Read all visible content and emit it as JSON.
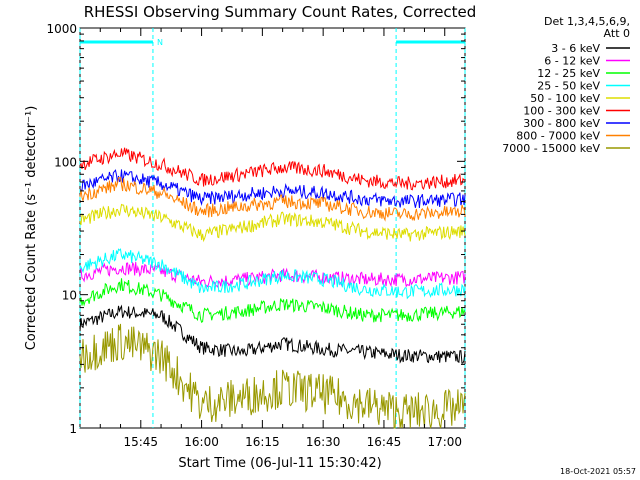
{
  "chart_data": {
    "type": "line",
    "title": "RHESSI Observing Summary Count Rates, Corrected",
    "xlabel": "Start Time (06-Jul-11 15:30:42)",
    "ylabel": "Corrected Count Rate (s⁻¹ detector⁻¹)",
    "y_scale": "log",
    "ylim": [
      1,
      1000
    ],
    "y_ticks": [
      "1",
      "10",
      "100",
      "1000"
    ],
    "x_range_minutes": [
      0,
      95
    ],
    "x_ticks": [
      {
        "minute": 15,
        "label": "15:45"
      },
      {
        "minute": 30,
        "label": "16:00"
      },
      {
        "minute": 45,
        "label": "16:15"
      },
      {
        "minute": 60,
        "label": "16:30"
      },
      {
        "minute": 75,
        "label": "16:45"
      },
      {
        "minute": 90,
        "label": "17:00"
      }
    ],
    "legend_header": [
      "Det 1,3,4,5,6,9,",
      "Att 0"
    ],
    "legend_position": "top-right",
    "timestamp": "18-Oct-2021 05:57",
    "night_bars": [
      {
        "start_min": 0,
        "end_min": 18,
        "label": "N"
      },
      {
        "start_min": 78,
        "end_min": 95,
        "label": ""
      }
    ],
    "series": [
      {
        "name": "3 - 6 keV",
        "color": "#000000",
        "values": [
          6,
          7.5,
          7,
          4,
          3.7,
          4.3,
          3.9,
          3.7,
          3.5,
          3.4
        ]
      },
      {
        "name": "6 - 12 keV",
        "color": "#ff00ff",
        "values": [
          14,
          16,
          15,
          12.5,
          13,
          14,
          13.5,
          13,
          13,
          13.5
        ]
      },
      {
        "name": "12 - 25 keV",
        "color": "#00ff00",
        "values": [
          9,
          12,
          10,
          7,
          7.5,
          8.5,
          8,
          7,
          7,
          7.5
        ]
      },
      {
        "name": "25 - 50 keV",
        "color": "#00ffff",
        "values": [
          16,
          20,
          17,
          11,
          12,
          14,
          13,
          11,
          10.5,
          11
        ]
      },
      {
        "name": "50 - 100 keV",
        "color": "#dddd00",
        "values": [
          36,
          44,
          38,
          28,
          32,
          37,
          35,
          30,
          28,
          30
        ]
      },
      {
        "name": "100 - 300 keV",
        "color": "#ff0000",
        "values": [
          95,
          115,
          95,
          72,
          80,
          90,
          85,
          72,
          68,
          72
        ]
      },
      {
        "name": "300 - 800 keV",
        "color": "#0000ff",
        "values": [
          65,
          78,
          68,
          52,
          56,
          60,
          58,
          52,
          50,
          52
        ]
      },
      {
        "name": "800 - 7000 keV",
        "color": "#ff8000",
        "values": [
          55,
          68,
          58,
          42,
          46,
          50,
          48,
          42,
          40,
          42
        ]
      },
      {
        "name": "7000 - 15000 keV",
        "color": "#999900",
        "values": [
          3.5,
          4.5,
          3.5,
          1.5,
          1.7,
          2.0,
          1.8,
          1.5,
          1.3,
          1.4
        ]
      }
    ],
    "x": [
      0,
      10,
      20,
      30,
      40,
      50,
      60,
      70,
      80,
      95
    ]
  }
}
